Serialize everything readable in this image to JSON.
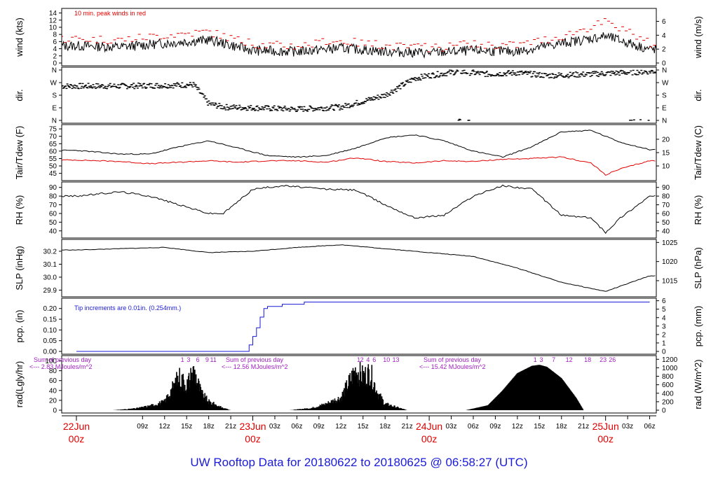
{
  "footer": {
    "title": "UW Rooftop Data for 20180622  to  20180625 @ 06:58:27  (UTC)",
    "color": "#1a1ad8"
  },
  "time_axis": {
    "tick_labels": [
      "09z",
      "12z",
      "15z",
      "18z",
      "21z",
      "03z",
      "06z",
      "09z",
      "12z",
      "15z",
      "18z",
      "21z",
      "03z",
      "06z",
      "09z",
      "12z",
      "15z",
      "18z",
      "21z",
      "03z",
      "06z"
    ],
    "day_labels": [
      {
        "day": "22Jun",
        "hour": "00z"
      },
      {
        "day": "23Jun",
        "hour": "00z"
      },
      {
        "day": "24Jun",
        "hour": "00z"
      },
      {
        "day": "25Jun",
        "hour": "00z"
      }
    ],
    "day_label_color": "#e00000"
  },
  "chart_data": [
    {
      "type": "line",
      "panel": "wind",
      "ylabel": "wind (kts)",
      "ylabel_right": "wind (m/s)",
      "y_ticks": [
        0,
        2,
        4,
        6,
        8,
        10,
        12,
        14
      ],
      "y_ticks_right": [
        0,
        2,
        4,
        6
      ],
      "ylim": [
        0,
        14.5
      ],
      "annotation": "10 min. peak winds in red",
      "annotation_color": "#e00000",
      "series": [
        {
          "hours": [
            0,
            6,
            12,
            18,
            24,
            30,
            36,
            42,
            48,
            54,
            60,
            66,
            72,
            78
          ],
          "values": [
            4.8,
            4.5,
            5.5,
            6.5,
            3.5,
            3.2,
            4.2,
            3.2,
            2.8,
            3.5,
            3.2,
            5.5,
            7.5,
            3.8
          ],
          "color": "#000000"
        },
        {
          "hours": [
            0,
            6,
            12,
            18,
            24,
            30,
            36,
            42,
            48,
            54,
            60,
            66,
            72,
            78
          ],
          "values": [
            6.8,
            6.5,
            7.8,
            8.8,
            5.2,
            4.8,
            6.2,
            4.8,
            4.2,
            5.2,
            5.0,
            7.5,
            11.5,
            5.5
          ],
          "color": "#e00000"
        }
      ]
    },
    {
      "type": "scatter",
      "panel": "direction",
      "ylabel": "dir.",
      "y_ticks": [
        "N",
        "W",
        "S",
        "E",
        "N"
      ],
      "y_ticks_right": [
        "N",
        "W",
        "S",
        "E",
        "N"
      ],
      "series": [
        {
          "hours": [
            0,
            6,
            12,
            16,
            18,
            20,
            24,
            30,
            36,
            40,
            42,
            46,
            48,
            52,
            56,
            60,
            64,
            70,
            78
          ],
          "values": [
            245,
            245,
            250,
            255,
            120,
            95,
            90,
            80,
            95,
            150,
            180,
            300,
            320,
            350,
            330,
            340,
            320,
            330,
            350
          ],
          "color": "#000000"
        }
      ]
    },
    {
      "type": "line",
      "panel": "temperature",
      "ylabel": "Tair/Tdew (F)",
      "ylabel_right": "Tair/Tdew (C)",
      "y_ticks": [
        45,
        50,
        55,
        60,
        65,
        70,
        75
      ],
      "y_ticks_right": [
        10,
        15,
        20
      ],
      "ylim": [
        42,
        76
      ],
      "series": [
        {
          "name": "Tair",
          "hours": [
            0,
            6,
            10,
            14,
            18,
            22,
            26,
            30,
            34,
            38,
            42,
            46,
            50,
            54,
            58,
            62,
            66,
            70,
            74,
            78
          ],
          "values": [
            60.5,
            58,
            58,
            63,
            67,
            62,
            57,
            56,
            57,
            62,
            69,
            71,
            67,
            60,
            56,
            63,
            73,
            74,
            66,
            61
          ],
          "color": "#000000"
        },
        {
          "name": "Tdew",
          "hours": [
            0,
            6,
            10,
            14,
            18,
            22,
            26,
            30,
            34,
            38,
            42,
            46,
            50,
            54,
            58,
            62,
            66,
            70,
            72,
            74,
            78
          ],
          "values": [
            54,
            53,
            51.5,
            52.5,
            53.5,
            52.5,
            53.5,
            53.5,
            52.5,
            55.5,
            53,
            52,
            53.5,
            53,
            54.5,
            55,
            56,
            52,
            44,
            48,
            53.5
          ],
          "color": "#e00000"
        }
      ]
    },
    {
      "type": "line",
      "panel": "humidity",
      "ylabel": "RH (%)",
      "ylabel_right": "RH (%)",
      "y_ticks": [
        40,
        50,
        60,
        70,
        80,
        90
      ],
      "y_ticks_right": [
        40,
        50,
        60,
        70,
        80,
        90
      ],
      "ylim": [
        35,
        93
      ],
      "series": [
        {
          "hours": [
            0,
            6,
            10,
            14,
            18,
            20,
            24,
            28,
            34,
            38,
            42,
            46,
            50,
            54,
            58,
            62,
            66,
            70,
            72,
            74,
            78
          ],
          "values": [
            80,
            85,
            80,
            70,
            60,
            60,
            88,
            92,
            88,
            87,
            70,
            55,
            58,
            80,
            92,
            88,
            58,
            55,
            38,
            55,
            80
          ],
          "color": "#000000"
        }
      ]
    },
    {
      "type": "line",
      "panel": "pressure",
      "ylabel": "SLP (inHg)",
      "ylabel_right": "SLP (hPa)",
      "y_ticks": [
        29.9,
        30.0,
        30.1,
        30.2
      ],
      "y_ticks_right": [
        1015,
        1020,
        1025
      ],
      "ylim": [
        29.87,
        30.27
      ],
      "series": [
        {
          "hours": [
            0,
            6,
            12,
            18,
            24,
            30,
            36,
            42,
            48,
            54,
            60,
            66,
            72,
            78
          ],
          "values": [
            30.21,
            30.22,
            30.23,
            30.19,
            30.2,
            30.23,
            30.25,
            30.22,
            30.19,
            30.16,
            30.07,
            29.96,
            29.89,
            30.01
          ],
          "color": "#000000"
        }
      ]
    },
    {
      "type": "line",
      "panel": "precipitation",
      "ylabel": "pcp. (in)",
      "ylabel_right": "pcp. (mm)",
      "y_ticks": [
        0.0,
        0.05,
        0.1,
        0.15,
        0.2
      ],
      "y_ticks_right": [
        0,
        1,
        2,
        3,
        4,
        5,
        6
      ],
      "ylim": [
        0,
        0.235
      ],
      "annotation": "Tip increments are 0.01in. (0.254mm.)",
      "annotation_color": "#1a1ad8",
      "series": [
        {
          "hours": [
            0,
            23,
            23.5,
            24,
            24.5,
            25,
            25.5,
            26,
            28,
            30,
            31,
            36,
            78
          ],
          "values": [
            0,
            0,
            0.03,
            0.07,
            0.11,
            0.16,
            0.2,
            0.21,
            0.22,
            0.22,
            0.23,
            0.23,
            0.23
          ],
          "color": "#1a1ad8"
        }
      ]
    },
    {
      "type": "area",
      "panel": "radiation",
      "ylabel": "rad(Lgly/hr)",
      "ylabel_right": "rad (W/m^2)",
      "y_ticks": [
        0,
        20,
        40,
        60,
        80,
        100
      ],
      "y_ticks_right": [
        0,
        200,
        400,
        600,
        800,
        1000,
        1200
      ],
      "ylim": [
        0,
        105
      ],
      "annotations": [
        {
          "line1": "Sum of previous day",
          "line2": "<--- 2.83 MJoules/m^2"
        },
        {
          "line1": "Sum of previous day",
          "line2": "<--- 12.56 MJoules/m^2"
        },
        {
          "line1": "Sum of previous day",
          "line2": "<--- 15.42 MJoules/m^2"
        }
      ],
      "annotation_color": "#a020c0",
      "cloud_marks": [
        {
          "day": 1,
          "labels": [
            "1",
            "3",
            "6",
            "9",
            "11"
          ]
        },
        {
          "day": 2,
          "labels": [
            "1",
            "2",
            "4",
            "6",
            "10",
            "13"
          ]
        },
        {
          "day": 3,
          "labels": [
            "1",
            "3",
            "7",
            "12",
            "18",
            "23",
            "26"
          ]
        }
      ],
      "series": [
        {
          "name": "day1",
          "hours": [
            5,
            8,
            10,
            12,
            14,
            15,
            16,
            17,
            18,
            20,
            21
          ],
          "values": [
            0,
            4,
            10,
            20,
            80,
            60,
            95,
            40,
            20,
            5,
            0
          ],
          "color": "#000000"
        },
        {
          "name": "day2",
          "hours": [
            29,
            32,
            34,
            36,
            38,
            39,
            40,
            41,
            42,
            44,
            45
          ],
          "values": [
            0,
            5,
            15,
            30,
            95,
            80,
            90,
            40,
            15,
            5,
            0
          ],
          "color": "#000000"
        },
        {
          "name": "day3",
          "hours": [
            53,
            56,
            58,
            60,
            62,
            63,
            64,
            66,
            68,
            69
          ],
          "values": [
            0,
            10,
            40,
            75,
            90,
            92,
            88,
            65,
            25,
            0
          ],
          "color": "#000000"
        }
      ]
    }
  ]
}
